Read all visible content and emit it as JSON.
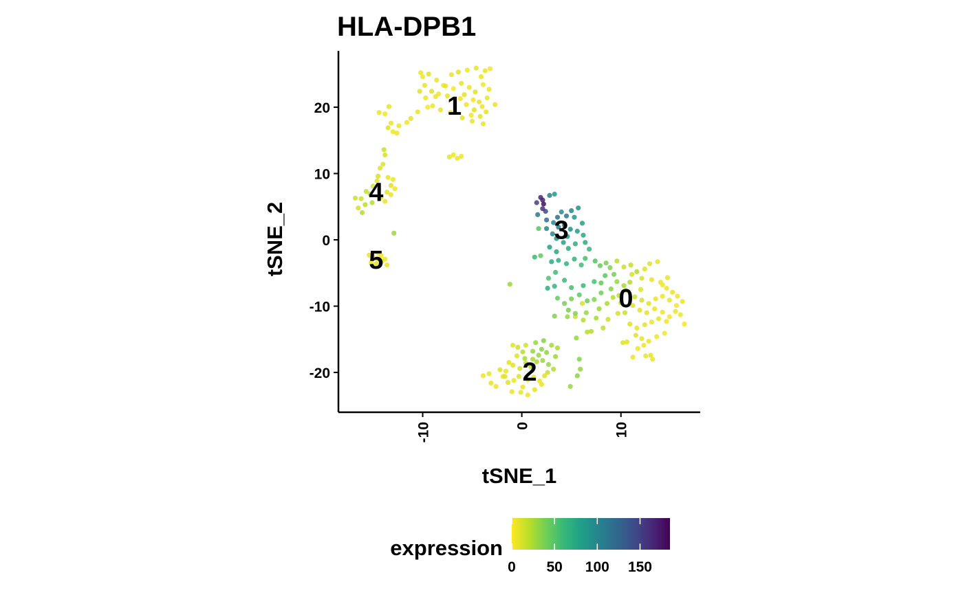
{
  "chart_data": {
    "type": "scatter",
    "title": "HLA-DPB1",
    "xlabel": "tSNE_1",
    "ylabel": "tSNE_2",
    "xlim": [
      -18.5,
      18
    ],
    "ylim": [
      -26,
      28.5
    ],
    "xticks": [
      -10,
      0,
      10
    ],
    "yticks": [
      20,
      10,
      0,
      -10,
      -20
    ],
    "grid": false,
    "legend": {
      "title": "expression",
      "position": "bottom",
      "type": "colorbar",
      "range": [
        0,
        185
      ],
      "ticks": [
        0,
        50,
        100,
        150
      ],
      "colors": [
        "#FDE725",
        "#B8DE29",
        "#6CCE59",
        "#35B779",
        "#1F9E89",
        "#26828E",
        "#31688E",
        "#3E4A89",
        "#482878",
        "#440154"
      ]
    },
    "clusters": [
      {
        "label": "0",
        "x": 10.5,
        "y": -8.8
      },
      {
        "label": "1",
        "x": -6.8,
        "y": 20.2
      },
      {
        "label": "2",
        "x": 0.8,
        "y": -19.9
      },
      {
        "label": "3",
        "x": 4.0,
        "y": 1.5
      },
      {
        "label": "4",
        "x": -14.7,
        "y": 7.2
      },
      {
        "label": "5",
        "x": -14.7,
        "y": -3.0
      }
    ],
    "points": [
      [
        -10.2,
        25.2,
        6
      ],
      [
        -10.0,
        24.6,
        4
      ],
      [
        -9.4,
        25.0,
        8
      ],
      [
        -8.6,
        24.1,
        5
      ],
      [
        -7.9,
        23.3,
        3
      ],
      [
        -7.1,
        24.9,
        6
      ],
      [
        -6.4,
        25.3,
        9
      ],
      [
        -5.5,
        25.6,
        4
      ],
      [
        -4.6,
        25.9,
        7
      ],
      [
        -4.1,
        24.6,
        5
      ],
      [
        -3.7,
        25.5,
        6
      ],
      [
        -3.2,
        25.8,
        3
      ],
      [
        -9.8,
        23.3,
        5
      ],
      [
        -9.1,
        22.4,
        8
      ],
      [
        -8.4,
        22.0,
        4
      ],
      [
        -7.7,
        23.2,
        6
      ],
      [
        -6.9,
        22.8,
        3
      ],
      [
        -6.1,
        23.6,
        7
      ],
      [
        -5.3,
        23.0,
        5
      ],
      [
        -4.7,
        22.3,
        8
      ],
      [
        -3.9,
        23.4,
        4
      ],
      [
        -3.3,
        22.7,
        6
      ],
      [
        -8.7,
        21.6,
        5
      ],
      [
        -7.5,
        21.7,
        7
      ],
      [
        -6.2,
        21.3,
        4
      ],
      [
        -5.8,
        21.9,
        8
      ],
      [
        -4.9,
        21.1,
        3
      ],
      [
        -4.3,
        20.8,
        6
      ],
      [
        -3.5,
        21.4,
        5
      ],
      [
        -2.7,
        20.4,
        7
      ],
      [
        -5.6,
        20.4,
        4
      ],
      [
        -4.8,
        19.6,
        8
      ],
      [
        -4.0,
        20.1,
        5
      ],
      [
        -3.6,
        19.3,
        6
      ],
      [
        -5.1,
        18.8,
        4
      ],
      [
        -4.2,
        18.6,
        7
      ],
      [
        -3.9,
        17.5,
        5
      ],
      [
        -5.0,
        17.9,
        6
      ],
      [
        -6.0,
        18.4,
        8
      ],
      [
        -7.2,
        19.2,
        4
      ],
      [
        -8.2,
        19.6,
        6
      ],
      [
        -9.0,
        20.2,
        5
      ],
      [
        -9.5,
        20.0,
        3
      ],
      [
        -10.5,
        19.3,
        6
      ],
      [
        -11.2,
        18.3,
        7
      ],
      [
        -11.6,
        17.7,
        4
      ],
      [
        -12.4,
        17.2,
        5
      ],
      [
        -13.2,
        17.6,
        6
      ],
      [
        -13.5,
        16.9,
        8
      ],
      [
        -13.0,
        16.3,
        4
      ],
      [
        -12.6,
        16.1,
        5
      ],
      [
        -13.4,
        20.1,
        7
      ],
      [
        -14.4,
        19.2,
        6
      ],
      [
        -13.8,
        19.0,
        4
      ],
      [
        -10.3,
        22.4,
        8
      ],
      [
        -9.7,
        21.4,
        5
      ],
      [
        -6.9,
        12.8,
        4
      ],
      [
        -6.5,
        12.3,
        6
      ],
      [
        -6.1,
        12.6,
        5
      ],
      [
        -7.3,
        12.5,
        7
      ],
      [
        -13.9,
        13.6,
        14
      ],
      [
        -13.8,
        12.8,
        12
      ],
      [
        -14.0,
        11.4,
        9
      ],
      [
        -14.3,
        10.8,
        8
      ],
      [
        -15.0,
        8.1,
        12
      ],
      [
        -14.6,
        8.9,
        10
      ],
      [
        -15.7,
        7.3,
        18
      ],
      [
        -16.2,
        6.2,
        15
      ],
      [
        -15.8,
        5.3,
        20
      ],
      [
        -16.5,
        4.8,
        12
      ],
      [
        -16.8,
        6.3,
        16
      ],
      [
        -16.1,
        4.1,
        22
      ],
      [
        -13.5,
        9.4,
        6
      ],
      [
        -13.0,
        9.1,
        5
      ],
      [
        -13.2,
        8.2,
        8
      ],
      [
        -13.6,
        7.2,
        7
      ],
      [
        -14.2,
        6.4,
        9
      ],
      [
        -13.8,
        5.8,
        6
      ],
      [
        -14.5,
        9.6,
        11
      ],
      [
        -15.3,
        6.9,
        19
      ],
      [
        -15.1,
        5.6,
        21
      ],
      [
        -13.2,
        6.8,
        5
      ],
      [
        -12.8,
        7.7,
        4
      ],
      [
        -12.9,
        1.0,
        28
      ],
      [
        -15.4,
        -2.3,
        6
      ],
      [
        -15.0,
        -2.6,
        4
      ],
      [
        -14.6,
        -2.9,
        7
      ],
      [
        -14.2,
        -2.4,
        5
      ],
      [
        -13.8,
        -2.9,
        6
      ],
      [
        -15.2,
        -3.4,
        4
      ],
      [
        -14.7,
        -3.6,
        8
      ],
      [
        -14.1,
        -3.2,
        5
      ],
      [
        -13.6,
        -3.8,
        6
      ],
      [
        -14.5,
        -2.0,
        5
      ],
      [
        -3.9,
        -20.5,
        5
      ],
      [
        -3.1,
        -21.6,
        7
      ],
      [
        -2.6,
        -22.1,
        4
      ],
      [
        -1.9,
        -20.6,
        6
      ],
      [
        -1.4,
        -21.5,
        8
      ],
      [
        -0.8,
        -21.2,
        5
      ],
      [
        -0.3,
        -20.6,
        9
      ],
      [
        0.1,
        -22.2,
        4
      ],
      [
        0.6,
        -21.1,
        6
      ],
      [
        1.2,
        -20.7,
        7
      ],
      [
        1.8,
        -21.3,
        5
      ],
      [
        2.3,
        -20.5,
        10
      ],
      [
        -3.3,
        -20.2,
        6
      ],
      [
        -2.2,
        -19.6,
        8
      ],
      [
        -1.6,
        -19.8,
        5
      ],
      [
        -0.9,
        -18.9,
        9
      ],
      [
        -0.2,
        -19.4,
        12
      ],
      [
        0.4,
        -18.6,
        18
      ],
      [
        0.9,
        -19.1,
        22
      ],
      [
        1.5,
        -18.4,
        25
      ],
      [
        2.1,
        -18.2,
        28
      ],
      [
        2.7,
        -18.8,
        30
      ],
      [
        3.2,
        -19.5,
        22
      ],
      [
        2.6,
        -20.0,
        15
      ],
      [
        1.1,
        -18.0,
        24
      ],
      [
        0.3,
        -17.9,
        26
      ],
      [
        1.7,
        -17.4,
        30
      ],
      [
        2.5,
        -17.0,
        32
      ],
      [
        3.4,
        -17.6,
        28
      ],
      [
        2.0,
        -16.5,
        34
      ],
      [
        1.1,
        -16.8,
        30
      ],
      [
        0.1,
        -16.9,
        20
      ],
      [
        0.4,
        -15.9,
        12
      ],
      [
        1.4,
        -15.5,
        30
      ],
      [
        2.2,
        -15.2,
        35
      ],
      [
        -0.4,
        -16.2,
        15
      ],
      [
        -0.9,
        -15.9,
        8
      ],
      [
        -0.5,
        -17.5,
        10
      ],
      [
        -1.3,
        -18.5,
        8
      ],
      [
        -0.1,
        -23.0,
        6
      ],
      [
        0.6,
        -23.4,
        5
      ],
      [
        1.3,
        -22.6,
        7
      ],
      [
        2.0,
        -21.8,
        6
      ],
      [
        -1.0,
        -22.9,
        5
      ],
      [
        -1.7,
        -20.6,
        9
      ],
      [
        3.0,
        -15.9,
        26
      ],
      [
        3.6,
        -16.3,
        24
      ],
      [
        -1.2,
        -6.7,
        28
      ],
      [
        4.9,
        -22.1,
        30
      ],
      [
        5.6,
        -20.5,
        33
      ],
      [
        5.9,
        -19.5,
        31
      ],
      [
        5.8,
        -18.0,
        35
      ],
      [
        5.5,
        -14.8,
        30
      ],
      [
        7.0,
        -13.8,
        22
      ],
      [
        6.1,
        -9.6,
        12
      ],
      [
        5.4,
        -11.6,
        14
      ],
      [
        1.5,
        5.6,
        150
      ],
      [
        1.9,
        6.4,
        165
      ],
      [
        2.2,
        5.4,
        180
      ],
      [
        2.1,
        6.0,
        170
      ],
      [
        2.4,
        4.3,
        145
      ],
      [
        2.1,
        4.7,
        160
      ],
      [
        2.8,
        6.7,
        105
      ],
      [
        3.3,
        6.9,
        85
      ],
      [
        1.6,
        3.8,
        110
      ],
      [
        2.5,
        3.0,
        120
      ],
      [
        3.2,
        2.6,
        100
      ],
      [
        3.6,
        3.4,
        115
      ],
      [
        4.0,
        4.2,
        95
      ],
      [
        4.5,
        3.6,
        110
      ],
      [
        3.7,
        1.9,
        105
      ],
      [
        4.3,
        2.2,
        95
      ],
      [
        4.9,
        1.6,
        90
      ],
      [
        2.5,
        1.7,
        100
      ],
      [
        3.1,
        0.9,
        95
      ],
      [
        3.5,
        0.2,
        90
      ],
      [
        4.6,
        0.5,
        88
      ],
      [
        5.0,
        4.4,
        100
      ],
      [
        5.7,
        4.8,
        92
      ],
      [
        5.3,
        3.4,
        85
      ],
      [
        6.1,
        2.5,
        80
      ],
      [
        5.6,
        1.3,
        82
      ],
      [
        6.2,
        0.7,
        75
      ],
      [
        6.4,
        -0.4,
        70
      ],
      [
        5.4,
        -0.6,
        68
      ],
      [
        4.7,
        -1.3,
        72
      ],
      [
        4.2,
        -0.4,
        78
      ],
      [
        3.5,
        -1.8,
        76
      ],
      [
        2.8,
        -1.1,
        80
      ],
      [
        1.7,
        1.7,
        50
      ],
      [
        1.9,
        -2.4,
        45
      ],
      [
        1.3,
        -2.6,
        60
      ],
      [
        3.0,
        -3.3,
        72
      ],
      [
        3.7,
        -3.1,
        68
      ],
      [
        4.5,
        -3.6,
        65
      ],
      [
        5.3,
        -2.9,
        66
      ],
      [
        6.0,
        -3.8,
        58
      ],
      [
        6.8,
        -1.4,
        62
      ],
      [
        6.4,
        -2.8,
        56
      ],
      [
        7.4,
        -3.2,
        52
      ],
      [
        7.9,
        -3.9,
        44
      ],
      [
        8.5,
        -3.5,
        38
      ],
      [
        8.9,
        -4.2,
        36
      ],
      [
        9.3,
        -5.2,
        40
      ],
      [
        8.4,
        -5.4,
        48
      ],
      [
        7.3,
        -6.3,
        55
      ],
      [
        6.2,
        -6.9,
        60
      ],
      [
        5.0,
        -7.2,
        56
      ],
      [
        4.3,
        -6.1,
        62
      ],
      [
        3.4,
        -4.9,
        58
      ],
      [
        2.7,
        -5.8,
        52
      ],
      [
        2.6,
        -7.3,
        70
      ],
      [
        3.3,
        -7.0,
        64
      ],
      [
        8.0,
        -6.5,
        45
      ],
      [
        9.6,
        -6.3,
        30
      ],
      [
        9.0,
        -7.4,
        34
      ],
      [
        10.3,
        -6.9,
        26
      ],
      [
        10.9,
        -6.4,
        22
      ],
      [
        8.0,
        -8.0,
        40
      ],
      [
        7.3,
        -9.0,
        36
      ],
      [
        6.6,
        -9.2,
        42
      ],
      [
        5.8,
        -8.3,
        46
      ],
      [
        5.0,
        -8.9,
        40
      ],
      [
        4.3,
        -9.6,
        38
      ],
      [
        3.6,
        -8.8,
        44
      ],
      [
        4.7,
        -10.6,
        38
      ],
      [
        5.4,
        -11.1,
        36
      ],
      [
        6.5,
        -11.0,
        30
      ],
      [
        7.8,
        -10.4,
        28
      ],
      [
        8.6,
        -9.6,
        24
      ],
      [
        9.2,
        -8.7,
        22
      ],
      [
        10.0,
        -9.5,
        16
      ],
      [
        7.5,
        -11.8,
        26
      ],
      [
        6.2,
        -12.1,
        22
      ],
      [
        4.6,
        -11.6,
        30
      ],
      [
        8.7,
        -12.0,
        14
      ],
      [
        9.7,
        -11.1,
        12
      ],
      [
        8.2,
        -13.3,
        18
      ],
      [
        6.6,
        -13.9,
        20
      ],
      [
        3.3,
        -11.5,
        36
      ],
      [
        9.6,
        -3.2,
        20
      ],
      [
        10.3,
        -4.1,
        14
      ],
      [
        11.0,
        -3.8,
        18
      ],
      [
        11.6,
        -4.8,
        22
      ],
      [
        12.4,
        -4.4,
        10
      ],
      [
        12.9,
        -3.6,
        8
      ],
      [
        13.7,
        -3.3,
        6
      ],
      [
        12.1,
        -5.8,
        12
      ],
      [
        13.1,
        -6.0,
        7
      ],
      [
        14.0,
        -6.4,
        5
      ],
      [
        14.6,
        -7.3,
        4
      ],
      [
        15.2,
        -7.9,
        6
      ],
      [
        15.7,
        -8.5,
        4
      ],
      [
        16.2,
        -9.3,
        5
      ],
      [
        15.6,
        -9.9,
        3
      ],
      [
        14.9,
        -9.1,
        5
      ],
      [
        14.2,
        -8.5,
        4
      ],
      [
        13.5,
        -8.9,
        6
      ],
      [
        12.8,
        -9.6,
        8
      ],
      [
        12.1,
        -9.1,
        12
      ],
      [
        11.4,
        -8.6,
        14
      ],
      [
        11.2,
        -9.9,
        10
      ],
      [
        11.9,
        -10.6,
        9
      ],
      [
        12.6,
        -11.0,
        7
      ],
      [
        13.4,
        -10.4,
        5
      ],
      [
        14.2,
        -10.9,
        4
      ],
      [
        14.9,
        -11.6,
        3
      ],
      [
        15.5,
        -10.8,
        5
      ],
      [
        16.0,
        -11.3,
        4
      ],
      [
        16.4,
        -12.7,
        3
      ],
      [
        14.6,
        -12.3,
        4
      ],
      [
        13.8,
        -11.9,
        6
      ],
      [
        13.1,
        -12.4,
        5
      ],
      [
        12.4,
        -12.8,
        7
      ],
      [
        11.6,
        -13.3,
        6
      ],
      [
        10.9,
        -12.7,
        10
      ],
      [
        10.4,
        -11.0,
        14
      ],
      [
        11.5,
        -14.4,
        8
      ],
      [
        12.1,
        -14.9,
        6
      ],
      [
        12.8,
        -15.3,
        5
      ],
      [
        13.6,
        -14.6,
        4
      ],
      [
        14.4,
        -14.1,
        3
      ],
      [
        12.3,
        -15.9,
        5
      ],
      [
        11.7,
        -16.4,
        4
      ],
      [
        10.6,
        -15.4,
        8
      ],
      [
        10.2,
        -15.5,
        10
      ],
      [
        11.2,
        -17.7,
        4
      ],
      [
        12.5,
        -17.5,
        6
      ],
      [
        13.2,
        -18.0,
        5
      ],
      [
        13.0,
        -17.4,
        7
      ],
      [
        14.2,
        -6.8,
        4
      ],
      [
        14.7,
        -5.7,
        5
      ],
      [
        11.1,
        -5.2,
        12
      ],
      [
        10.5,
        -7.6,
        18
      ],
      [
        12.0,
        -7.5,
        9
      ],
      [
        9.8,
        -8.4,
        20
      ]
    ]
  }
}
